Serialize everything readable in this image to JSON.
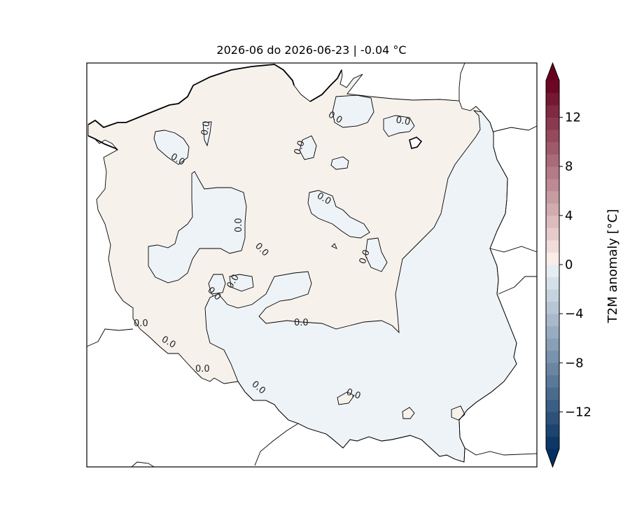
{
  "title": "2026-06 do 2026-06-23 | -0.04 °C",
  "colorbar": {
    "label": "T2M anomaly [°C]",
    "min": -15,
    "max": 15,
    "step": 1,
    "ticks": [
      {
        "value": 12,
        "label": "12"
      },
      {
        "value": 8,
        "label": "8"
      },
      {
        "value": 4,
        "label": "4"
      },
      {
        "value": 0,
        "label": "0"
      },
      {
        "value": -4,
        "label": "−4"
      },
      {
        "value": -8,
        "label": "−8"
      },
      {
        "value": -12,
        "label": "−12"
      }
    ],
    "colors": {
      "positive_start": "#fff4ee",
      "positive_end": "#67001f",
      "negative_start": "#edf3f8",
      "negative_end": "#053061"
    }
  },
  "map": {
    "region": "Poland",
    "anomaly_colors": {
      "slightly_positive": "#f7f1ec",
      "slightly_negative": "#eef3f7"
    },
    "contour_labels": [
      "0.0",
      "0.0",
      "0.0",
      "0.0",
      "0.0",
      "0.0",
      "0.0",
      "0.0",
      "0.0",
      "0.0",
      "0.0",
      "0.0",
      "0.0",
      "0.0",
      "0.0",
      "0.0",
      "0.0",
      "0.0"
    ]
  }
}
